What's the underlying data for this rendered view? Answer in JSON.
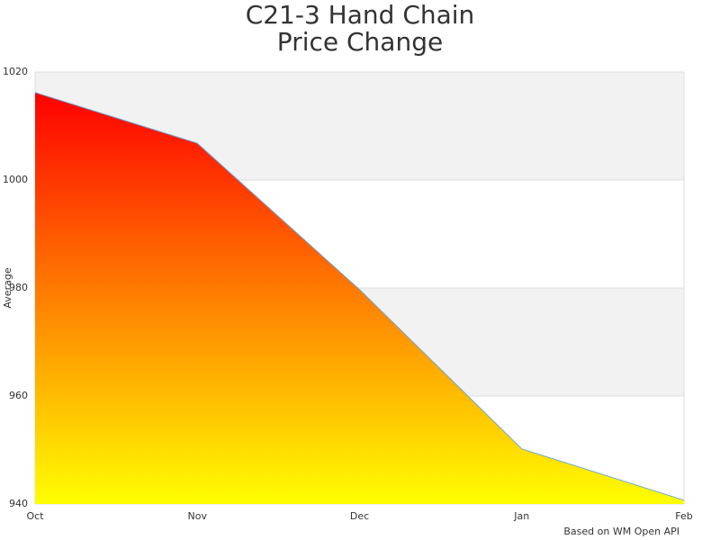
{
  "chart_data": {
    "type": "area",
    "title": [
      "C21-3 Hand Chain",
      "Price Change"
    ],
    "y_label": "Average",
    "credit": "Based on WM Open API",
    "categories": [
      "Oct",
      "Nov",
      "Dec",
      "Jan",
      "Feb"
    ],
    "values": [
      1016.2,
      1006.8,
      979.7,
      950.2,
      940.7
    ],
    "gradient": [
      "#ff0000",
      "#ffff00"
    ],
    "line_color": "#6aa7d8",
    "band_color": "#f2f2f2",
    "ylim": [
      940,
      1020
    ],
    "yticks": [
      940,
      960,
      980,
      1000,
      1020
    ],
    "grid": true
  }
}
